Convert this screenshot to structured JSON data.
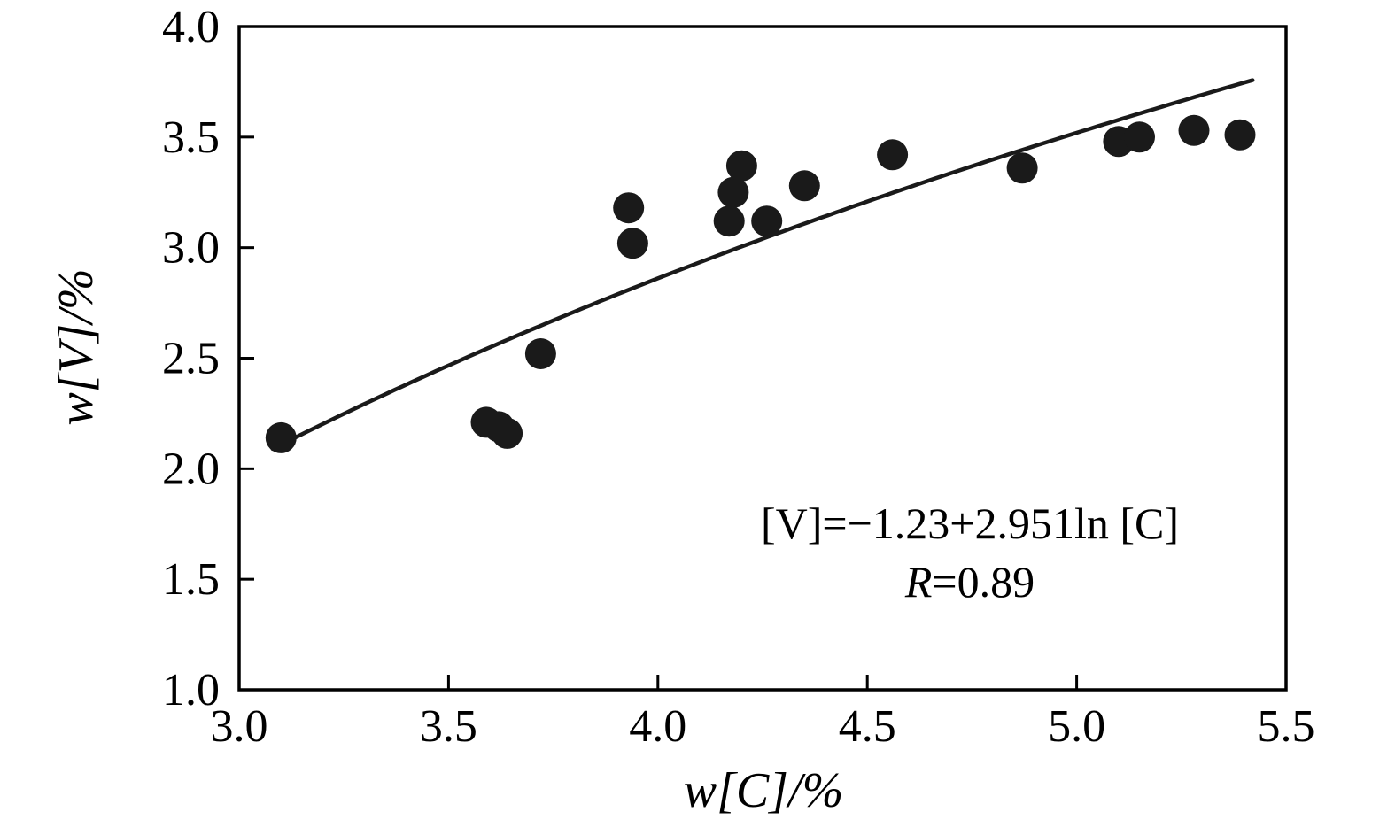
{
  "chart_data": {
    "type": "scatter",
    "title": "",
    "xlabel": "w[C]/%",
    "ylabel": "w[V]/%",
    "xlim": [
      3.0,
      5.5
    ],
    "ylim": [
      1.0,
      4.0
    ],
    "x_tick_labels": [
      "3.0",
      "3.5",
      "4.0",
      "4.5",
      "5.0",
      "5.5"
    ],
    "y_tick_labels": [
      "1.0",
      "1.5",
      "2.0",
      "2.5",
      "3.0",
      "3.5",
      "4.0"
    ],
    "grid": false,
    "legend": "none",
    "series": [
      {
        "name": "data-points",
        "type": "scatter",
        "marker": "circle",
        "color": "#1a1a1a",
        "points": [
          [
            3.1,
            2.14
          ],
          [
            3.59,
            2.21
          ],
          [
            3.62,
            2.19
          ],
          [
            3.64,
            2.16
          ],
          [
            3.72,
            2.52
          ],
          [
            3.93,
            3.18
          ],
          [
            3.94,
            3.02
          ],
          [
            4.17,
            3.12
          ],
          [
            4.18,
            3.25
          ],
          [
            4.2,
            3.37
          ],
          [
            4.26,
            3.12
          ],
          [
            4.35,
            3.28
          ],
          [
            4.56,
            3.42
          ],
          [
            4.87,
            3.36
          ],
          [
            5.1,
            3.48
          ],
          [
            5.15,
            3.5
          ],
          [
            5.28,
            3.53
          ],
          [
            5.39,
            3.51
          ]
        ]
      },
      {
        "name": "fit-curve",
        "type": "line",
        "color": "#1a1a1a",
        "equation": "[V] = -1.23 + 2.951 ln[C]",
        "coefficients": {
          "intercept": -1.23,
          "slope_ln": 2.951
        },
        "x_range": [
          3.08,
          5.42
        ]
      }
    ],
    "annotation": {
      "equation": "[V]=−1.23+2.951ln [C]",
      "r_symbol": "R",
      "r_value": "=0.89"
    },
    "colors": {
      "axis": "#000000",
      "point": "#1a1a1a",
      "line": "#1a1a1a",
      "background": "#ffffff"
    }
  }
}
